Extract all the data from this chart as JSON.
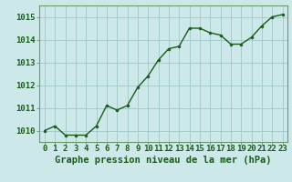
{
  "x": [
    0,
    1,
    2,
    3,
    4,
    5,
    6,
    7,
    8,
    9,
    10,
    11,
    12,
    13,
    14,
    15,
    16,
    17,
    18,
    19,
    20,
    21,
    22,
    23
  ],
  "y": [
    1010.0,
    1010.2,
    1009.8,
    1009.8,
    1009.8,
    1010.2,
    1011.1,
    1010.9,
    1011.1,
    1011.9,
    1012.4,
    1013.1,
    1013.6,
    1013.7,
    1014.5,
    1014.5,
    1014.3,
    1014.2,
    1013.8,
    1013.8,
    1014.1,
    1014.6,
    1015.0,
    1015.1
  ],
  "line_color": "#1a5c1a",
  "marker_color": "#1a5c1a",
  "bg_color": "#cce8e8",
  "grid_color": "#a0c8c8",
  "xlabel": "Graphe pression niveau de la mer (hPa)",
  "xlabel_color": "#1a5c1a",
  "ytick_labels": [
    "1010",
    "1011",
    "1012",
    "1013",
    "1014",
    "1015"
  ],
  "ytick_values": [
    1010,
    1011,
    1012,
    1013,
    1014,
    1015
  ],
  "ylim": [
    1009.5,
    1015.5
  ],
  "xlim": [
    -0.5,
    23.5
  ],
  "xtick_labels": [
    "0",
    "1",
    "2",
    "3",
    "4",
    "5",
    "6",
    "7",
    "8",
    "9",
    "10",
    "11",
    "12",
    "13",
    "14",
    "15",
    "16",
    "17",
    "18",
    "19",
    "20",
    "21",
    "22",
    "23"
  ],
  "tick_color": "#1a5c1a",
  "axis_color": "#6a9a6a",
  "label_fontsize": 7.5,
  "tick_fontsize": 6.5
}
